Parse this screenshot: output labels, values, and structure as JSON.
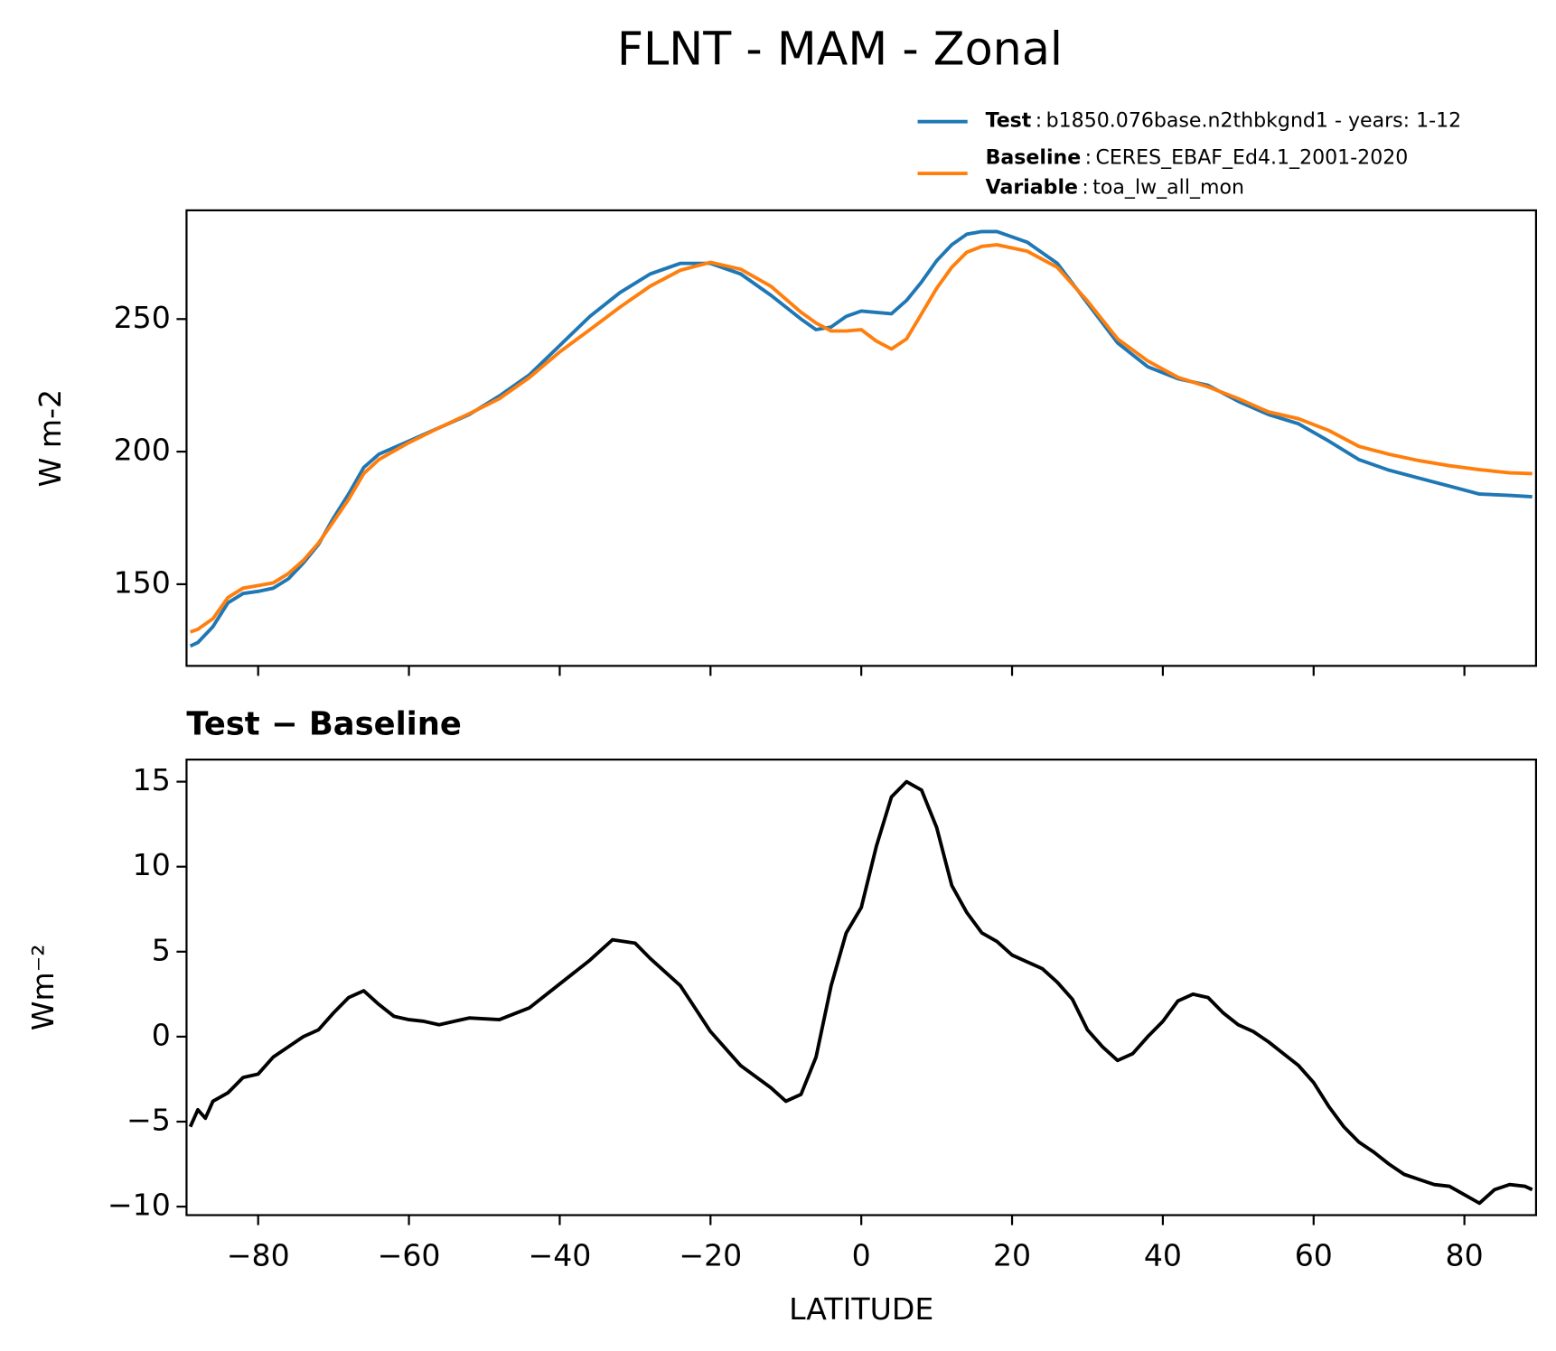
{
  "title": "FLNT - MAM - Zonal",
  "chart_data": [
    {
      "type": "line",
      "ylabel": "W m-2",
      "legend_separator": ":",
      "xlim": [
        -89.5,
        89.5
      ],
      "ylim": [
        119.2,
        291
      ],
      "yticks": [
        150,
        200,
        250
      ],
      "xticks": [
        -80,
        -60,
        -40,
        -20,
        0,
        20,
        40,
        60,
        80
      ],
      "x": [
        -89,
        -88,
        -86,
        -84,
        -82,
        -80,
        -78,
        -76,
        -74,
        -72,
        -70,
        -68,
        -66,
        -64,
        -60,
        -56,
        -52,
        -48,
        -44,
        -40,
        -36,
        -32,
        -28,
        -24,
        -20,
        -16,
        -12,
        -8,
        -6,
        -4,
        -2,
        0,
        2,
        4,
        6,
        8,
        10,
        12,
        14,
        16,
        18,
        22,
        26,
        30,
        34,
        38,
        42,
        46,
        50,
        54,
        58,
        62,
        66,
        70,
        74,
        78,
        82,
        86,
        89
      ],
      "series": [
        {
          "name": "Test",
          "description": "b1850.076base.n2thbkgnd1 - years: 1-12",
          "color": "#1f77b4",
          "values": [
            126.7,
            128,
            134,
            143,
            146.5,
            147.3,
            148.5,
            152,
            158,
            165,
            175,
            184,
            194,
            199,
            204,
            209,
            214,
            221,
            229,
            240,
            251,
            260,
            267,
            271,
            271,
            267,
            259,
            250,
            246,
            247,
            251,
            253,
            252.5,
            252,
            257,
            264,
            272,
            278,
            282,
            283,
            283,
            279,
            271,
            256,
            241,
            232,
            227.5,
            225,
            219,
            214,
            210.5,
            204,
            197,
            193,
            190,
            187,
            184,
            183.5,
            183
          ]
        },
        {
          "name": "Baseline",
          "description": "CERES_EBAF_Ed4.1_2001-2020",
          "extra_name": "Variable",
          "extra_description": "toa_lw_all_mon",
          "color": "#ff7f0e",
          "values": [
            132,
            133,
            137,
            145,
            148.5,
            149.5,
            150.5,
            154,
            159,
            165.5,
            173.7,
            182,
            191.7,
            197,
            203.4,
            209,
            214.3,
            220,
            228,
            237.6,
            246,
            254.5,
            262.4,
            268.4,
            271.4,
            268.8,
            262.4,
            252.6,
            248.5,
            245.5,
            245.5,
            246,
            241.7,
            238.7,
            242.5,
            252,
            261.6,
            269.5,
            275.2,
            277.4,
            278,
            275.6,
            269.5,
            256.8,
            242.5,
            234.2,
            228,
            224.4,
            220,
            215,
            212.4,
            208,
            202,
            199,
            196.6,
            194.7,
            193.2,
            192,
            191.7
          ]
        }
      ]
    },
    {
      "type": "line",
      "title": "Test − Baseline",
      "xlabel": "LATITUDE",
      "ylabel": "Wm⁻²",
      "xlim": [
        -89.5,
        89.5
      ],
      "ylim": [
        -10.5,
        16.3
      ],
      "yticks": [
        {
          "value": -10,
          "label": "−10"
        },
        {
          "value": -5,
          "label": "−5"
        },
        0,
        5,
        10,
        15
      ],
      "xticks": [
        {
          "value": -80,
          "label": "−80"
        },
        {
          "value": -60,
          "label": "−60"
        },
        {
          "value": -40,
          "label": "−40"
        },
        {
          "value": -20,
          "label": "−20"
        },
        0,
        20,
        40,
        60,
        80
      ],
      "x": [
        -89,
        -88,
        -87,
        -86,
        -84,
        -82,
        -80,
        -78,
        -76,
        -74,
        -72,
        -70,
        -68,
        -66,
        -64,
        -62,
        -60,
        -58,
        -56,
        -52,
        -48,
        -44,
        -40,
        -36,
        -33,
        -30,
        -28,
        -24,
        -20,
        -16,
        -12,
        -10,
        -8,
        -6,
        -4,
        -2,
        0,
        2,
        4,
        6,
        8,
        10,
        12,
        14,
        16,
        18,
        20,
        22,
        24,
        26,
        28,
        30,
        32,
        34,
        36,
        38,
        40,
        42,
        44,
        46,
        48,
        50,
        52,
        54,
        56,
        58,
        60,
        62,
        64,
        66,
        68,
        70,
        72,
        74,
        76,
        78,
        80,
        82,
        84,
        86,
        88,
        89
      ],
      "series": [
        {
          "color": "#000000",
          "values": [
            -5.3,
            -4.3,
            -4.8,
            -3.8,
            -3.3,
            -2.4,
            -2.2,
            -1.2,
            -0.6,
            0,
            0.4,
            1.4,
            2.3,
            2.7,
            1.9,
            1.2,
            1,
            0.9,
            0.7,
            1.1,
            1,
            1.7,
            3.1,
            4.5,
            5.7,
            5.5,
            4.6,
            3,
            0.3,
            -1.7,
            -3,
            -3.8,
            -3.4,
            -1.2,
            3,
            6.1,
            7.6,
            11.2,
            14.1,
            15,
            14.5,
            12.3,
            8.9,
            7.3,
            6.1,
            5.6,
            4.8,
            4.4,
            4,
            3.2,
            2.2,
            0.4,
            -0.6,
            -1.4,
            -1,
            0,
            0.9,
            2.1,
            2.5,
            2.3,
            1.4,
            0.7,
            0.3,
            -0.3,
            -1,
            -1.7,
            -2.7,
            -4.1,
            -5.3,
            -6.2,
            -6.8,
            -7.5,
            -8.1,
            -8.4,
            -8.7,
            -8.8,
            -9.3,
            -9.8,
            -9,
            -8.7,
            -8.8,
            -9
          ]
        }
      ]
    }
  ]
}
